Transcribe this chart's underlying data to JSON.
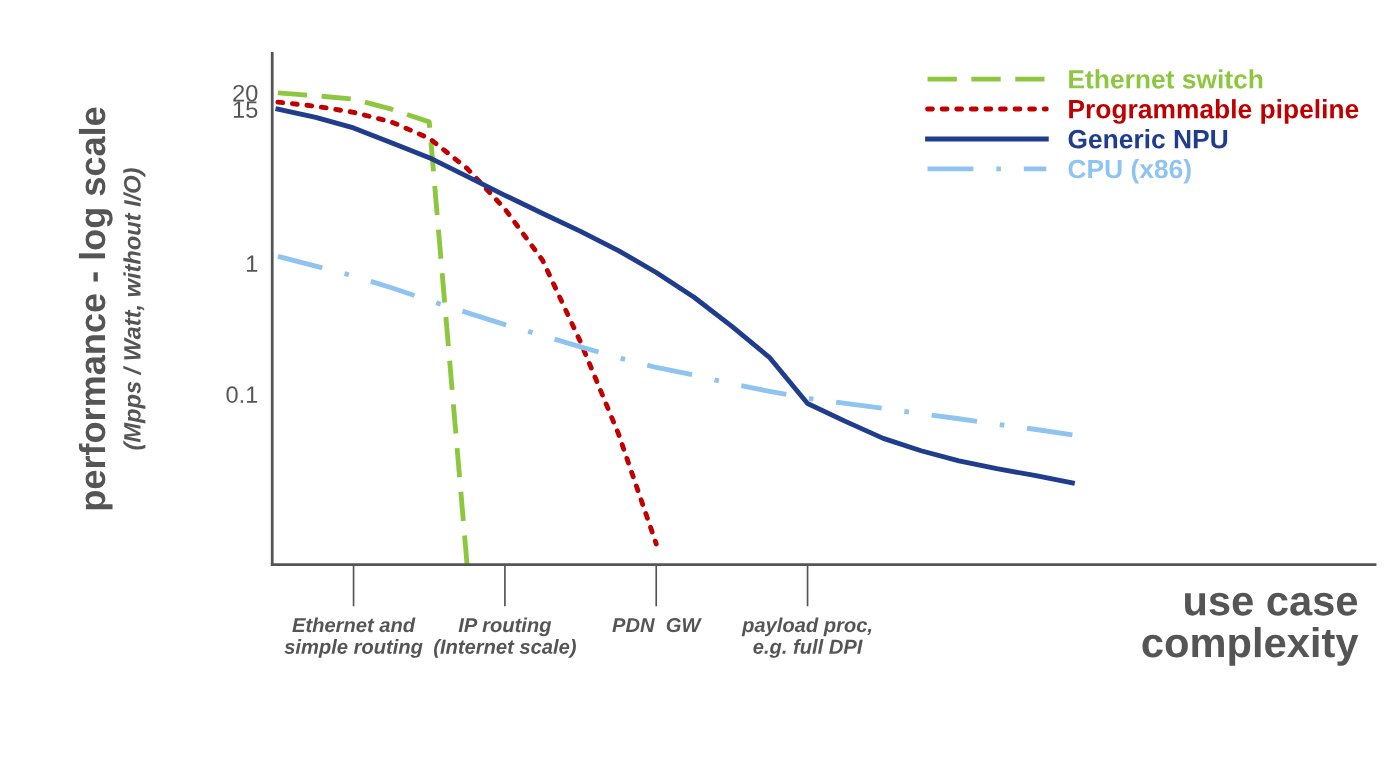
{
  "chart_data": {
    "type": "line",
    "ylabel": "performance - log scale\n(Mpps / Watt, without I/O)",
    "xlabel": "use case\ncomplexity",
    "log": "y",
    "ylim": [
      0.005,
      40
    ],
    "yticks": [
      0.1,
      1,
      15,
      20
    ],
    "categories": [
      null,
      null,
      "Ethernet and\nsimple routing",
      null,
      null,
      null,
      "IP routing\n(Internet scale)",
      null,
      null,
      null,
      "PDN  GW",
      null,
      null,
      null,
      "payload proc,\ne.g. full DPI",
      null,
      null,
      null,
      null,
      null,
      null,
      null
    ],
    "legend": "top right",
    "grid": false,
    "series": [
      {
        "name": "Ethernet switch",
        "color": "#8dc63f",
        "line_style": "dashed",
        "values": [
          20,
          19,
          17.9,
          15,
          12,
          0.005,
          null,
          null,
          null,
          null,
          null,
          null,
          null,
          null,
          null,
          null,
          null,
          null,
          null,
          null,
          null,
          null
        ]
      },
      {
        "name": "Programmable pipeline",
        "color": "#c00000",
        "line_style": "dotted",
        "values": [
          17,
          15.8,
          14.2,
          12,
          9,
          5.3,
          2.6,
          1.05,
          0.25,
          0.05,
          0.0072,
          null,
          null,
          null,
          null,
          null,
          null,
          null,
          null,
          null,
          null,
          null
        ]
      },
      {
        "name": "Generic NPU",
        "color": "#1f3d8c",
        "line_style": "solid",
        "values": [
          15,
          13,
          10.8,
          8.3,
          6.4,
          4.6,
          3.3,
          2.4,
          1.75,
          1.25,
          0.85,
          0.55,
          0.33,
          0.19,
          0.085,
          0.062,
          0.046,
          0.037,
          0.031,
          0.027,
          0.024,
          0.021
        ]
      },
      {
        "name": "CPU (x86)",
        "color": "#8fc3f0",
        "line_style": "dashdot",
        "values": [
          1.13,
          0.95,
          0.8,
          0.65,
          0.52,
          0.42,
          0.34,
          0.28,
          0.23,
          0.19,
          0.16,
          0.14,
          0.12,
          0.105,
          0.093,
          0.085,
          0.078,
          0.071,
          0.065,
          0.059,
          0.054,
          0.049
        ]
      }
    ]
  }
}
